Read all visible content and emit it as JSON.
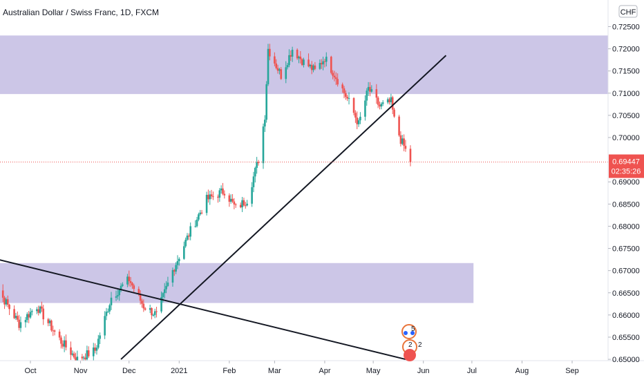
{
  "header": {
    "title": "Australian Dollar / Swiss Franc, 1D, FXCM",
    "currency_badge": "CHF"
  },
  "price_tag": {
    "value": "0.69447",
    "countdown": "02:35:26",
    "color": "#ef5350"
  },
  "event_badges": {
    "top_count": "5",
    "bottom_left": "2",
    "bottom_right": "2"
  },
  "chart_data": {
    "type": "candlestick",
    "title": "Australian Dollar / Swiss Franc, 1D, FXCM",
    "x_tick_labels": [
      "Oct",
      "Nov",
      "Dec",
      "2021",
      "Feb",
      "Mar",
      "Apr",
      "May",
      "Jun",
      "Jul",
      "Aug",
      "Sep"
    ],
    "y_tick_labels": [
      "0.72500",
      "0.72000",
      "0.71500",
      "0.71000",
      "0.70500",
      "0.70000",
      "0.69000",
      "0.68500",
      "0.68000",
      "0.67500",
      "0.67000",
      "0.66500",
      "0.66000",
      "0.65500",
      "0.65000"
    ],
    "ylim": [
      0.6497,
      0.731
    ],
    "up_color": "#26a69a",
    "down_color": "#ef5350",
    "last_price": 0.69447,
    "zones": [
      {
        "y_low": 0.7098,
        "y_high": 0.723,
        "x_start": "2020-09-01",
        "x_end": "2021-09-30",
        "color": "#c9c3e6"
      },
      {
        "y_low": 0.6627,
        "y_high": 0.6717,
        "x_start": "2020-09-01",
        "x_end": "2021-07-02",
        "color": "#c9c3e6"
      }
    ],
    "trendlines": [
      {
        "x1": "2020-09-01",
        "y1": 0.6734,
        "x2": "2021-05-21",
        "y2": 0.65
      },
      {
        "x1": "2020-11-26",
        "y1": 0.65,
        "x2": "2021-06-15",
        "y2": 0.7185
      }
    ],
    "anchors": [
      {
        "date": "2020-09-07",
        "close": 0.668
      },
      {
        "date": "2020-09-24",
        "close": 0.658
      },
      {
        "date": "2020-10-05",
        "close": 0.662
      },
      {
        "date": "2020-10-20",
        "close": 0.654
      },
      {
        "date": "2020-10-30",
        "close": 0.65
      },
      {
        "date": "2020-11-10",
        "close": 0.652
      },
      {
        "date": "2020-11-20",
        "close": 0.664
      },
      {
        "date": "2020-12-01",
        "close": 0.668
      },
      {
        "date": "2020-12-10",
        "close": 0.662
      },
      {
        "date": "2020-12-18",
        "close": 0.66
      },
      {
        "date": "2020-12-28",
        "close": 0.67
      },
      {
        "date": "2021-01-08",
        "close": 0.679
      },
      {
        "date": "2021-01-18",
        "close": 0.686
      },
      {
        "date": "2021-01-29",
        "close": 0.688
      },
      {
        "date": "2021-02-05",
        "close": 0.684
      },
      {
        "date": "2021-02-12",
        "close": 0.686
      },
      {
        "date": "2021-02-19",
        "close": 0.695
      },
      {
        "date": "2021-02-23",
        "close": 0.705
      },
      {
        "date": "2021-02-25",
        "close": 0.72
      },
      {
        "date": "2021-03-05",
        "close": 0.714
      },
      {
        "date": "2021-03-12",
        "close": 0.72
      },
      {
        "date": "2021-03-19",
        "close": 0.717
      },
      {
        "date": "2021-03-26",
        "close": 0.715
      },
      {
        "date": "2021-04-01",
        "close": 0.718
      },
      {
        "date": "2021-04-09",
        "close": 0.713
      },
      {
        "date": "2021-04-16",
        "close": 0.708
      },
      {
        "date": "2021-04-22",
        "close": 0.703
      },
      {
        "date": "2021-04-28",
        "close": 0.711
      },
      {
        "date": "2021-05-05",
        "close": 0.707
      },
      {
        "date": "2021-05-12",
        "close": 0.708
      },
      {
        "date": "2021-05-14",
        "close": 0.704
      },
      {
        "date": "2021-05-18",
        "close": 0.6995
      },
      {
        "date": "2021-05-20",
        "close": 0.698
      },
      {
        "date": "2021-05-24",
        "close": 0.6945
      }
    ]
  }
}
